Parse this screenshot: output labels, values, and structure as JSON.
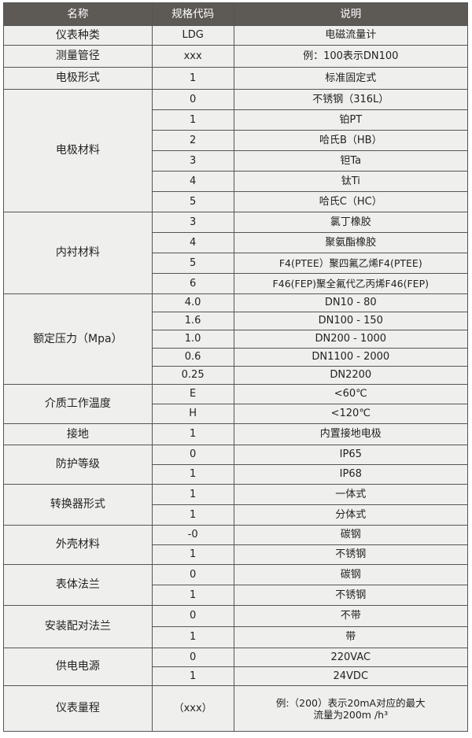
{
  "headers": [
    "名称",
    "规格代码",
    "说明"
  ],
  "groups": [
    {
      "name": "仪表种类",
      "h": 25,
      "rows": [
        [
          "LDG",
          "电磁流量计"
        ]
      ]
    },
    {
      "name": "测量管径",
      "h": 28,
      "rows": [
        [
          "xxx",
          "例：100表示DN100"
        ]
      ]
    },
    {
      "name": "电极形式",
      "h": 28,
      "rows": [
        [
          "1",
          "标准固定式"
        ]
      ]
    },
    {
      "name": "电极材料",
      "h": 26,
      "rows": [
        [
          "0",
          "不锈钢（316L）"
        ],
        [
          "1",
          "铂PT"
        ],
        [
          "2",
          "哈氏B（HB）"
        ],
        [
          "3",
          "钽Ta"
        ],
        [
          "4",
          "钛Ti"
        ],
        [
          "5",
          "哈氏C（HC）"
        ]
      ]
    },
    {
      "name": "内衬材料",
      "h": 26,
      "rows": [
        [
          "3",
          "氯丁橡胶"
        ],
        [
          "4",
          "聚氨酯橡胶"
        ],
        [
          "5",
          "F4(PTEE）聚四氟乙烯F4(PTEE)"
        ],
        [
          "6",
          "F46(FEP)聚全氟代乙丙烯F46(FEP)"
        ]
      ]
    },
    {
      "name": "额定压力（Mpa）",
      "h": 23,
      "rows": [
        [
          "4.0",
          "DN10 - 80"
        ],
        [
          "1.6",
          "DN100 - 150"
        ],
        [
          "1.0",
          "DN200 - 1000"
        ],
        [
          "0.6",
          "DN1100 - 2000"
        ],
        [
          "0.25",
          "DN2200"
        ]
      ]
    },
    {
      "name": "介质工作温度",
      "h": 25,
      "rows": [
        [
          "E",
          "<60℃"
        ],
        [
          "H",
          "<120℃"
        ]
      ]
    },
    {
      "name": "接地",
      "h": 27,
      "rows": [
        [
          "1",
          "内置接地电极"
        ]
      ]
    },
    {
      "name": "防护等级",
      "h": 25,
      "rows": [
        [
          "0",
          "IP65"
        ],
        [
          "1",
          "IP68"
        ]
      ]
    },
    {
      "name": "转换器形式",
      "h": 26,
      "rows": [
        [
          "1",
          "一体式"
        ],
        [
          "1",
          "分体式"
        ]
      ]
    },
    {
      "name": "外壳材料",
      "h": 25,
      "rows": [
        [
          "-0",
          "碳钢"
        ],
        [
          "1",
          "不锈钢"
        ]
      ]
    },
    {
      "name": "表体法兰",
      "h": 26,
      "rows": [
        [
          "0",
          "碳钢"
        ],
        [
          "1",
          "不锈钢"
        ]
      ]
    },
    {
      "name": "安装配对法兰",
      "h": 27,
      "rows": [
        [
          "0",
          "不带"
        ],
        [
          "1",
          "带"
        ]
      ]
    },
    {
      "name": "供电电源",
      "h": 24,
      "rows": [
        [
          "0",
          "220VAC"
        ],
        [
          "1",
          "24VDC"
        ]
      ]
    },
    {
      "name": "仪表量程",
      "h": 58,
      "rows": [
        [
          "（xxx）",
          "例:（200）表示20mA对应的最大\n流量为200m /h³"
        ]
      ]
    }
  ]
}
